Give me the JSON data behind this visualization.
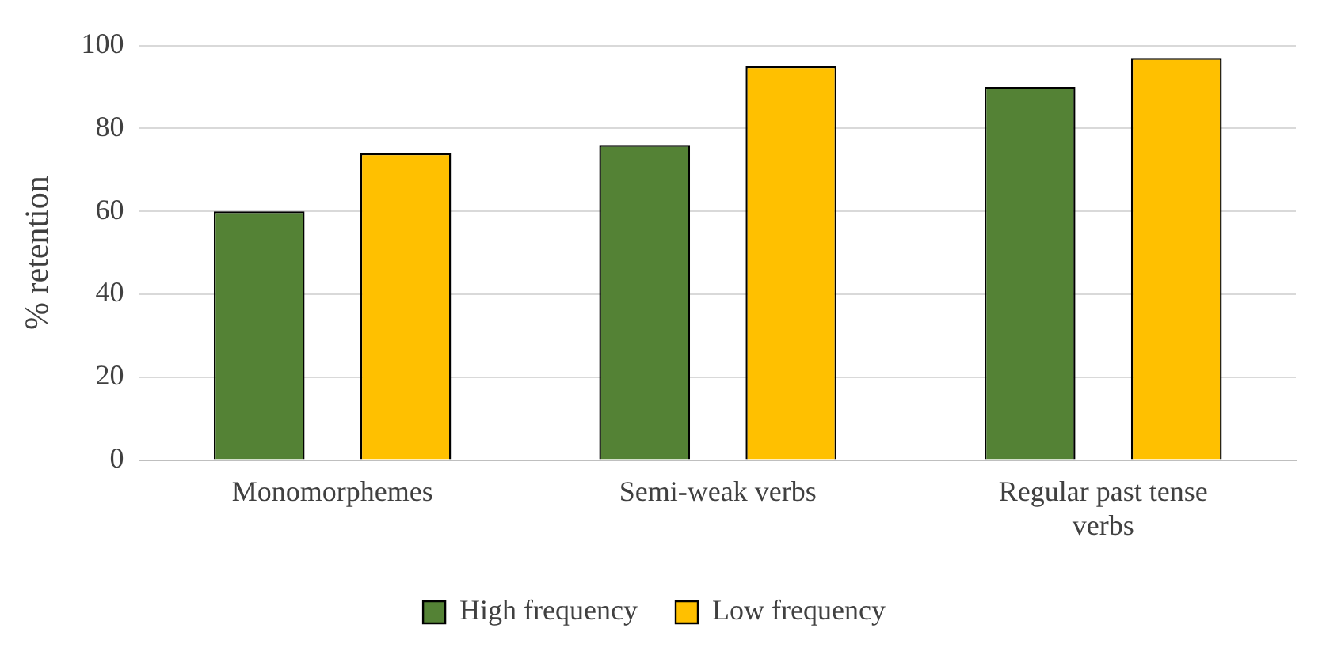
{
  "chart_data": {
    "type": "bar",
    "ylabel": "% retention",
    "categories": [
      "Monomorphemes",
      "Semi-weak verbs",
      "Regular past tense verbs"
    ],
    "series": [
      {
        "name": "High frequency",
        "color": "#548235",
        "values": [
          60,
          76,
          90
        ]
      },
      {
        "name": "Low frequency",
        "color": "#ffc000",
        "values": [
          74,
          95,
          97
        ]
      }
    ],
    "ylim": [
      0,
      100
    ],
    "yticks": [
      0,
      20,
      40,
      60,
      80,
      100
    ],
    "grid": "y",
    "legend": "bottom"
  }
}
